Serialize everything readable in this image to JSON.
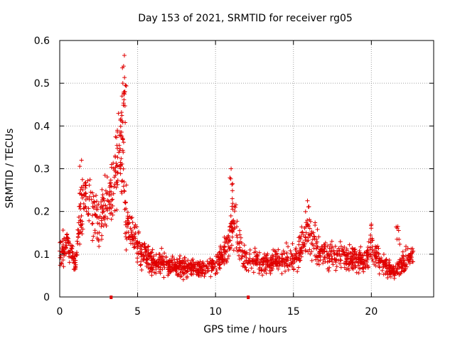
{
  "chart_data": {
    "type": "scatter",
    "title": "Day 153 of 2021, SRMTID for receiver rg05",
    "xlabel": "GPS time / hours",
    "ylabel": "SRMTID / TECUs",
    "xlim": [
      0,
      24
    ],
    "ylim": [
      0,
      0.6
    ],
    "x_ticks": [
      0,
      5,
      10,
      15,
      20
    ],
    "x_tick_labels": [
      "0",
      "5",
      "10",
      "15",
      "20"
    ],
    "y_ticks": [
      0,
      0.1,
      0.2,
      0.3,
      0.4,
      0.5,
      0.6
    ],
    "y_tick_labels": [
      "0",
      "0.1",
      "0.2",
      "0.3",
      "0.4",
      "0.5",
      "0.6"
    ],
    "grid": true,
    "marker": "+",
    "color": "#e00000",
    "x_range_of_data": [
      0,
      22.7
    ],
    "trend": {
      "x": [
        0,
        0.5,
        1.0,
        1.3,
        1.6,
        2.0,
        2.5,
        3.0,
        3.4,
        3.7,
        4.0,
        4.2,
        4.5,
        5.0,
        6,
        7,
        8,
        9,
        10,
        10.8,
        11.1,
        11.5,
        12,
        13,
        14,
        15,
        15.7,
        16,
        16.5,
        17,
        18,
        19,
        19.5,
        20,
        20.5,
        21,
        21.5,
        22,
        22.7
      ],
      "y": [
        0.11,
        0.12,
        0.08,
        0.18,
        0.22,
        0.22,
        0.17,
        0.22,
        0.24,
        0.3,
        0.32,
        0.2,
        0.15,
        0.12,
        0.08,
        0.075,
        0.07,
        0.07,
        0.075,
        0.11,
        0.18,
        0.12,
        0.09,
        0.08,
        0.085,
        0.09,
        0.12,
        0.15,
        0.11,
        0.1,
        0.095,
        0.09,
        0.08,
        0.11,
        0.09,
        0.07,
        0.06,
        0.08,
        0.1
      ]
    },
    "peaks": [
      {
        "x": 4.15,
        "y": 0.565
      },
      {
        "x": 4.1,
        "y": 0.54
      },
      {
        "x": 4.05,
        "y": 0.5
      },
      {
        "x": 4.0,
        "y": 0.47
      },
      {
        "x": 3.7,
        "y": 0.39
      },
      {
        "x": 1.4,
        "y": 0.32
      },
      {
        "x": 11.0,
        "y": 0.3
      },
      {
        "x": 15.9,
        "y": 0.225
      },
      {
        "x": 20.0,
        "y": 0.17
      },
      {
        "x": 21.7,
        "y": 0.165
      }
    ],
    "axis_markers_x": [
      3.3,
      12.1
    ]
  }
}
